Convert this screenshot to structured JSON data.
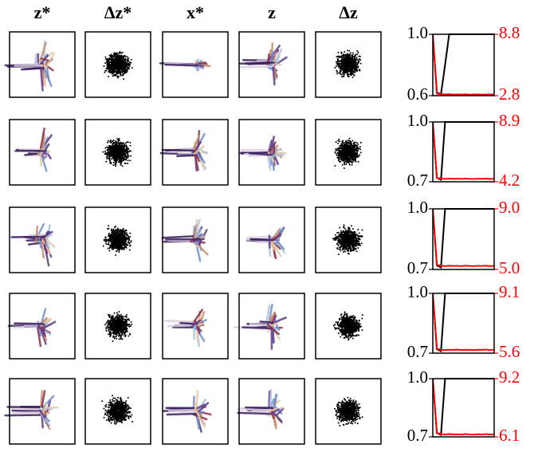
{
  "column_headers": [
    "z*",
    "Δz*",
    "x*",
    "z",
    "Δz"
  ],
  "chart_data": [
    {
      "type": "line",
      "x": [
        0,
        1,
        2,
        3,
        4,
        5,
        6,
        7,
        8,
        9,
        10,
        11,
        12,
        13,
        14,
        15
      ],
      "xlim": [
        0,
        15
      ],
      "ylim": [
        0.6,
        1
      ],
      "yticks": [
        0.6,
        {
          "value": 1,
          "label": "1.0"
        }
      ],
      "y2lim": [
        2.8,
        8.8
      ],
      "y2ticks": [
        2.8,
        8.8
      ],
      "series": [
        {
          "color": "#000000",
          "values": [
            1.0,
            0.62,
            0.61,
            0.8,
            1.0,
            1.0,
            1.0,
            1.0,
            1.0,
            1.0,
            1.0,
            1.0,
            1.0,
            1.0,
            1.0,
            1.0
          ]
        },
        {
          "color": "#ff0000",
          "axis": "y2",
          "values": [
            8.8,
            3.0,
            2.95,
            2.92,
            2.95,
            2.9,
            2.93,
            2.91,
            2.94,
            2.9,
            2.92,
            2.93,
            2.9,
            2.92,
            2.91,
            2.93
          ]
        }
      ]
    },
    {
      "type": "line",
      "x": [
        0,
        1,
        2,
        3,
        4,
        5,
        6,
        7,
        8,
        9,
        10,
        11,
        12,
        13,
        14,
        15
      ],
      "xlim": [
        0,
        15
      ],
      "ylim": [
        0.7,
        1
      ],
      "yticks": [
        0.7,
        {
          "value": 1,
          "label": "1.0"
        }
      ],
      "y2lim": [
        4.2,
        8.9
      ],
      "y2ticks": [
        4.2,
        8.9
      ],
      "series": [
        {
          "color": "#000000",
          "values": [
            1.0,
            0.72,
            0.71,
            1.0,
            1.0,
            1.0,
            1.0,
            1.0,
            1.0,
            1.0,
            1.0,
            1.0,
            1.0,
            1.0,
            1.0,
            1.0
          ]
        },
        {
          "color": "#ff0000",
          "axis": "y2",
          "values": [
            8.9,
            4.5,
            4.45,
            4.42,
            4.45,
            4.43,
            4.44,
            4.42,
            4.45,
            4.43,
            4.42,
            4.44,
            4.43,
            4.45,
            4.42,
            4.44
          ]
        }
      ]
    },
    {
      "type": "line",
      "x": [
        0,
        1,
        2,
        3,
        4,
        5,
        6,
        7,
        8,
        9,
        10,
        11,
        12,
        13,
        14,
        15
      ],
      "xlim": [
        0,
        15
      ],
      "ylim": [
        0.7,
        1
      ],
      "yticks": [
        0.7,
        {
          "value": 1,
          "label": "1.0"
        }
      ],
      "y2lim": [
        5,
        9
      ],
      "y2ticks": [
        {
          "value": 5,
          "label": "5.0"
        },
        {
          "value": 9,
          "label": "9.0"
        }
      ],
      "series": [
        {
          "color": "#000000",
          "values": [
            1.0,
            0.72,
            0.71,
            1.0,
            1.0,
            1.0,
            1.0,
            1.0,
            1.0,
            1.0,
            1.0,
            1.0,
            1.0,
            1.0,
            1.0,
            1.0
          ]
        },
        {
          "color": "#ff0000",
          "axis": "y2",
          "values": [
            9.0,
            5.3,
            5.25,
            5.22,
            5.25,
            5.23,
            5.24,
            5.22,
            5.25,
            5.23,
            5.22,
            5.24,
            5.23,
            5.25,
            5.22,
            5.24
          ]
        }
      ]
    },
    {
      "type": "line",
      "x": [
        0,
        1,
        2,
        3,
        4,
        5,
        6,
        7,
        8,
        9,
        10,
        11,
        12,
        13,
        14,
        15
      ],
      "xlim": [
        0,
        15
      ],
      "ylim": [
        0.7,
        1
      ],
      "yticks": [
        0.7,
        {
          "value": 1,
          "label": "1.0"
        }
      ],
      "y2lim": [
        5.6,
        9.1
      ],
      "y2ticks": [
        5.6,
        9.1
      ],
      "series": [
        {
          "color": "#000000",
          "values": [
            1.0,
            0.72,
            0.71,
            1.0,
            1.0,
            1.0,
            1.0,
            1.0,
            1.0,
            1.0,
            1.0,
            1.0,
            1.0,
            1.0,
            1.0,
            1.0
          ]
        },
        {
          "color": "#ff0000",
          "axis": "y2",
          "values": [
            9.1,
            5.85,
            5.8,
            5.78,
            5.8,
            5.79,
            5.81,
            5.78,
            5.8,
            5.79,
            5.78,
            5.8,
            5.79,
            5.81,
            5.78,
            5.8
          ]
        }
      ]
    },
    {
      "type": "line",
      "x": [
        0,
        1,
        2,
        3,
        4,
        5,
        6,
        7,
        8,
        9,
        10,
        11,
        12,
        13,
        14,
        15
      ],
      "xlim": [
        0,
        15
      ],
      "ylim": [
        0.7,
        1
      ],
      "yticks": [
        0.7,
        {
          "value": 1,
          "label": "1.0"
        }
      ],
      "y2lim": [
        6.1,
        9.2
      ],
      "y2ticks": [
        6.1,
        9.2
      ],
      "series": [
        {
          "color": "#000000",
          "values": [
            1.0,
            0.72,
            0.71,
            1.0,
            1.0,
            1.0,
            1.0,
            1.0,
            1.0,
            1.0,
            1.0,
            1.0,
            1.0,
            1.0,
            1.0,
            1.0
          ]
        },
        {
          "color": "#ff0000",
          "axis": "y2",
          "values": [
            9.2,
            6.3,
            6.25,
            6.22,
            6.25,
            6.23,
            6.24,
            6.22,
            6.25,
            6.23,
            6.22,
            6.24,
            6.23,
            6.25,
            6.22,
            6.24
          ]
        }
      ]
    }
  ]
}
